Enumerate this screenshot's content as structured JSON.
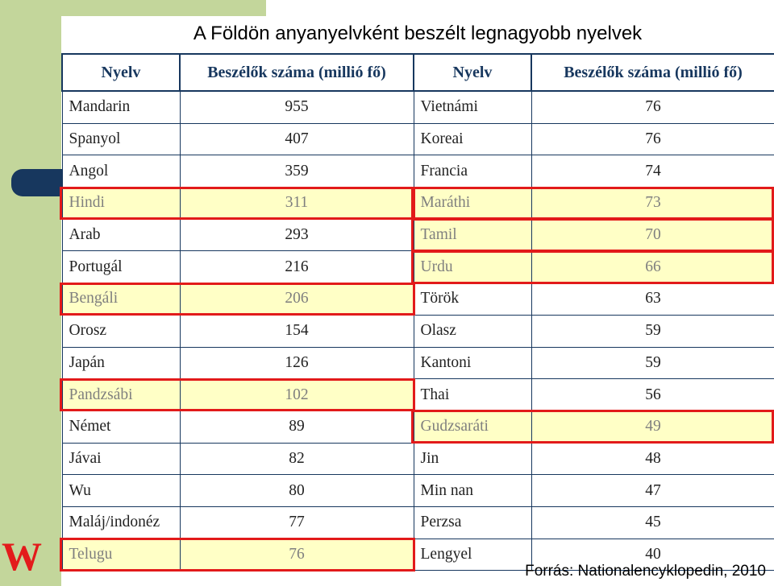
{
  "title": "A Földön anyanyelvként beszélt legnagyobb nyelvek",
  "headers": [
    "Nyelv",
    "Beszélők száma (millió fő)",
    "Nyelv",
    "Beszélők száma (millió fő)"
  ],
  "rows": [
    {
      "lang_left": "Mandarin",
      "count_left": "955",
      "lang_right": "Vietnámi",
      "count_right": "76",
      "hl_left": false,
      "hl_right": false
    },
    {
      "lang_left": "Spanyol",
      "count_left": "407",
      "lang_right": "Koreai",
      "count_right": "76",
      "hl_left": false,
      "hl_right": false
    },
    {
      "lang_left": "Angol",
      "count_left": "359",
      "lang_right": "Francia",
      "count_right": "74",
      "hl_left": false,
      "hl_right": false
    },
    {
      "lang_left": "Hindi",
      "count_left": "311",
      "lang_right": "Maráthi",
      "count_right": "73",
      "hl_left": true,
      "hl_right": true
    },
    {
      "lang_left": "Arab",
      "count_left": "293",
      "lang_right": "Tamil",
      "count_right": "70",
      "hl_left": false,
      "hl_right": true
    },
    {
      "lang_left": "Portugál",
      "count_left": "216",
      "lang_right": "Urdu",
      "count_right": "66",
      "hl_left": false,
      "hl_right": true
    },
    {
      "lang_left": "Bengáli",
      "count_left": "206",
      "lang_right": "Török",
      "count_right": "63",
      "hl_left": true,
      "hl_right": false
    },
    {
      "lang_left": "Orosz",
      "count_left": "154",
      "lang_right": "Olasz",
      "count_right": "59",
      "hl_left": false,
      "hl_right": false
    },
    {
      "lang_left": "Japán",
      "count_left": "126",
      "lang_right": "Kantoni",
      "count_right": "59",
      "hl_left": false,
      "hl_right": false
    },
    {
      "lang_left": "Pandzsábi",
      "count_left": "102",
      "lang_right": "Thai",
      "count_right": "56",
      "hl_left": true,
      "hl_right": false
    },
    {
      "lang_left": "Német",
      "count_left": "89",
      "lang_right": "Gudzsaráti",
      "count_right": "49",
      "hl_left": false,
      "hl_right": true
    },
    {
      "lang_left": "Jávai",
      "count_left": "82",
      "lang_right": "Jin",
      "count_right": "48",
      "hl_left": false,
      "hl_right": false
    },
    {
      "lang_left": "Wu",
      "count_left": "80",
      "lang_right": "Min nan",
      "count_right": "47",
      "hl_left": false,
      "hl_right": false
    },
    {
      "lang_left": "Maláj/indonéz",
      "count_left": "77",
      "lang_right": "Perzsa",
      "count_right": "45",
      "hl_left": false,
      "hl_right": false
    },
    {
      "lang_left": "Telugu",
      "count_left": "76",
      "lang_right": "Lengyel",
      "count_right": "40",
      "hl_left": true,
      "hl_right": false
    }
  ],
  "source": "Forrás: Nationalencyklopedin, 2010",
  "logo_text": "W",
  "colors": {
    "accent_green": "#c3d69b",
    "navy": "#17375e",
    "highlight_fill": "#ffffc6",
    "highlight_border": "#e21a1a",
    "logo_red": "#e31b1b"
  }
}
